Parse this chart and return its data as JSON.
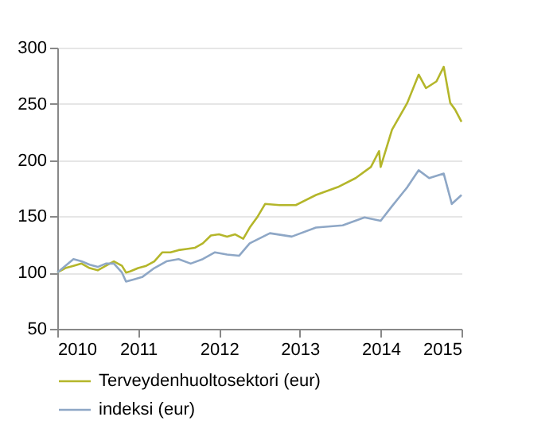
{
  "chart_data": {
    "type": "line",
    "xlim": [
      2010,
      2015
    ],
    "xticks": [
      2010,
      2011,
      2012,
      2013,
      2014,
      2015
    ],
    "ylim": [
      50,
      300
    ],
    "yticks": [
      50,
      100,
      150,
      200,
      250,
      300
    ],
    "grid": "y",
    "legend": "bottom",
    "marker": "none",
    "line_style": "solid",
    "series": [
      {
        "name": "Terveydenhuoltosektori (eur)",
        "color": "#b4b62a",
        "x": [
          2010,
          2010.1,
          2010.2,
          2010.3,
          2010.4,
          2010.5,
          2010.6,
          2010.7,
          2010.8,
          2010.85,
          2010.9,
          2011,
          2011.1,
          2011.2,
          2011.3,
          2011.4,
          2011.5,
          2011.6,
          2011.7,
          2011.8,
          2011.9,
          2012,
          2012.1,
          2012.2,
          2012.3,
          2012.38,
          2012.48,
          2012.57,
          2012.75,
          2012.95,
          2013.2,
          2013.47,
          2013.69,
          2013.88,
          2013.98,
          2014,
          2014.14,
          2014.33,
          2014.47,
          2014.56,
          2014.69,
          2014.78,
          2014.86,
          2014.92,
          2015
        ],
        "values": [
          100,
          104,
          106,
          108,
          104,
          102,
          106,
          110,
          106,
          100,
          101,
          104,
          106,
          110,
          118,
          118,
          120,
          121,
          122,
          126,
          133,
          134,
          132,
          134,
          130,
          140,
          150,
          161,
          160,
          160,
          169,
          176,
          184,
          194,
          208,
          194,
          227,
          251,
          276,
          264,
          270,
          283,
          251,
          245,
          234
        ]
      },
      {
        "name": "indeksi (eur)",
        "color": "#8ea7c6",
        "x": [
          2010,
          2010.1,
          2010.2,
          2010.3,
          2010.4,
          2010.5,
          2010.6,
          2010.7,
          2010.8,
          2010.85,
          2010.95,
          2011.05,
          2011.2,
          2011.35,
          2011.5,
          2011.65,
          2011.8,
          2011.95,
          2012.1,
          2012.25,
          2012.38,
          2012.63,
          2012.9,
          2013.2,
          2013.53,
          2013.8,
          2014,
          2014.14,
          2014.33,
          2014.47,
          2014.6,
          2014.78,
          2014.88,
          2015
        ],
        "values": [
          100,
          106,
          112,
          110,
          107,
          105,
          108,
          108,
          100,
          92,
          94,
          96,
          104,
          110,
          112,
          108,
          112,
          118,
          116,
          115,
          126,
          135,
          132,
          140,
          142,
          149,
          146,
          159,
          176,
          191,
          184,
          188,
          161,
          169
        ]
      }
    ]
  }
}
